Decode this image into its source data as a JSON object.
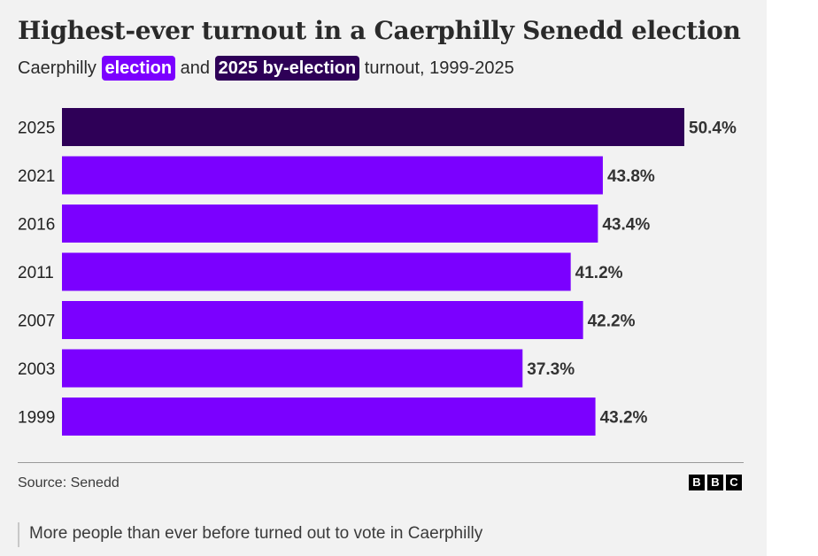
{
  "chart_data": {
    "type": "bar",
    "orientation": "horizontal",
    "title": "Highest-ever turnout in a Caerphilly Senedd election",
    "subtitle": {
      "prefix": "Caerphilly",
      "legend_1": "election",
      "middle": "and",
      "legend_2": "2025 by-election",
      "suffix": "turnout, 1999-2025"
    },
    "categories": [
      "2025",
      "2021",
      "2016",
      "2011",
      "2007",
      "2003",
      "1999"
    ],
    "values": [
      50.4,
      43.8,
      43.4,
      41.2,
      42.2,
      37.3,
      43.2
    ],
    "labels": [
      "50.4%",
      "43.8%",
      "43.4%",
      "41.2%",
      "42.2%",
      "37.3%",
      "43.2%"
    ],
    "series_type": [
      "by-election",
      "election",
      "election",
      "election",
      "election",
      "election",
      "election"
    ],
    "colors": {
      "election": "#7b00ff",
      "by-election": "#2e0057"
    },
    "xlim": [
      0,
      50.4
    ],
    "grid": false,
    "xlabel": "",
    "ylabel": ""
  },
  "source": "Source: Senedd",
  "logo": [
    "B",
    "B",
    "C"
  ],
  "caption": "More people than ever before turned out to vote in Caerphilly"
}
